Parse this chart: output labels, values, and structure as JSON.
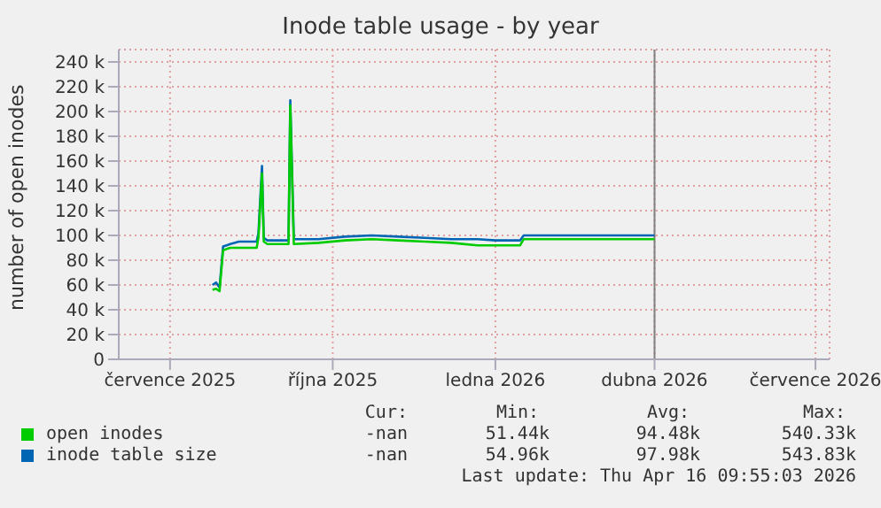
{
  "chart_data": {
    "type": "line",
    "title": "Inode table usage - by year",
    "ylabel": "number of open inodes",
    "x": [
      "2025-08-09",
      "2025-08-11",
      "2025-08-13",
      "2025-08-15",
      "2025-08-19",
      "2025-08-24",
      "2025-09-03",
      "2025-09-04",
      "2025-09-06",
      "2025-09-07",
      "2025-09-09",
      "2025-09-21",
      "2025-09-22",
      "2025-09-24",
      "2025-10-08",
      "2025-10-23",
      "2025-11-07",
      "2025-11-22",
      "2025-12-07",
      "2025-12-22",
      "2026-01-06",
      "2026-01-16",
      "2026-01-26",
      "2026-01-30",
      "2026-02-01",
      "2026-02-05",
      "2026-04-16"
    ],
    "series": [
      {
        "name": "open inodes",
        "color": "#00cc00",
        "values": [
          56,
          57,
          55,
          88,
          90,
          90,
          90,
          98,
          150,
          95,
          93,
          93,
          205,
          93,
          94,
          96,
          97,
          96,
          95,
          94,
          92,
          92,
          92,
          92,
          97,
          97,
          97
        ]
      },
      {
        "name": "inode table size",
        "color": "#0066b3",
        "values": [
          60,
          62,
          58,
          91,
          93,
          95,
          95,
          102,
          156,
          98,
          96,
          96,
          209,
          97,
          97,
          99,
          100,
          99,
          98,
          97,
          97,
          96,
          96,
          96,
          100,
          100,
          100
        ]
      }
    ],
    "xlim": [
      "2025-06-17",
      "2026-07-24"
    ],
    "xticks": [
      {
        "value": "2025-07-16",
        "label": "července 2025"
      },
      {
        "value": "2025-10-16",
        "label": "října 2025"
      },
      {
        "value": "2026-01-16",
        "label": "ledna 2026"
      },
      {
        "value": "2026-04-16",
        "label": "dubna 2026"
      },
      {
        "value": "2026-07-16",
        "label": "července 2026"
      }
    ],
    "ylim": [
      0,
      250
    ],
    "yticks": [
      {
        "value": 0,
        "label": "0"
      },
      {
        "value": 20,
        "label": "20 k"
      },
      {
        "value": 40,
        "label": "40 k"
      },
      {
        "value": 60,
        "label": "60 k"
      },
      {
        "value": 80,
        "label": "80 k"
      },
      {
        "value": 100,
        "label": "100 k"
      },
      {
        "value": 120,
        "label": "120 k"
      },
      {
        "value": 140,
        "label": "140 k"
      },
      {
        "value": 160,
        "label": "160 k"
      },
      {
        "value": 180,
        "label": "180 k"
      },
      {
        "value": 200,
        "label": "200 k"
      },
      {
        "value": 220,
        "label": "220 k"
      },
      {
        "value": 240,
        "label": "240 k"
      }
    ],
    "ref_lines": [
      {
        "axis": "x",
        "value": "2026-04-16",
        "color": "#808080"
      }
    ],
    "grid": true,
    "legend": "bottom",
    "marker": "none",
    "line_style": "solid",
    "annotations": [
      "Cur:",
      "Min:",
      "Avg:",
      "Max:",
      "-nan",
      "51.44k",
      "94.48k",
      "540.33k",
      "-nan",
      "54.96k",
      "97.98k",
      "543.83k",
      "Last update: Thu Apr 16 09:55:03 2026"
    ]
  }
}
